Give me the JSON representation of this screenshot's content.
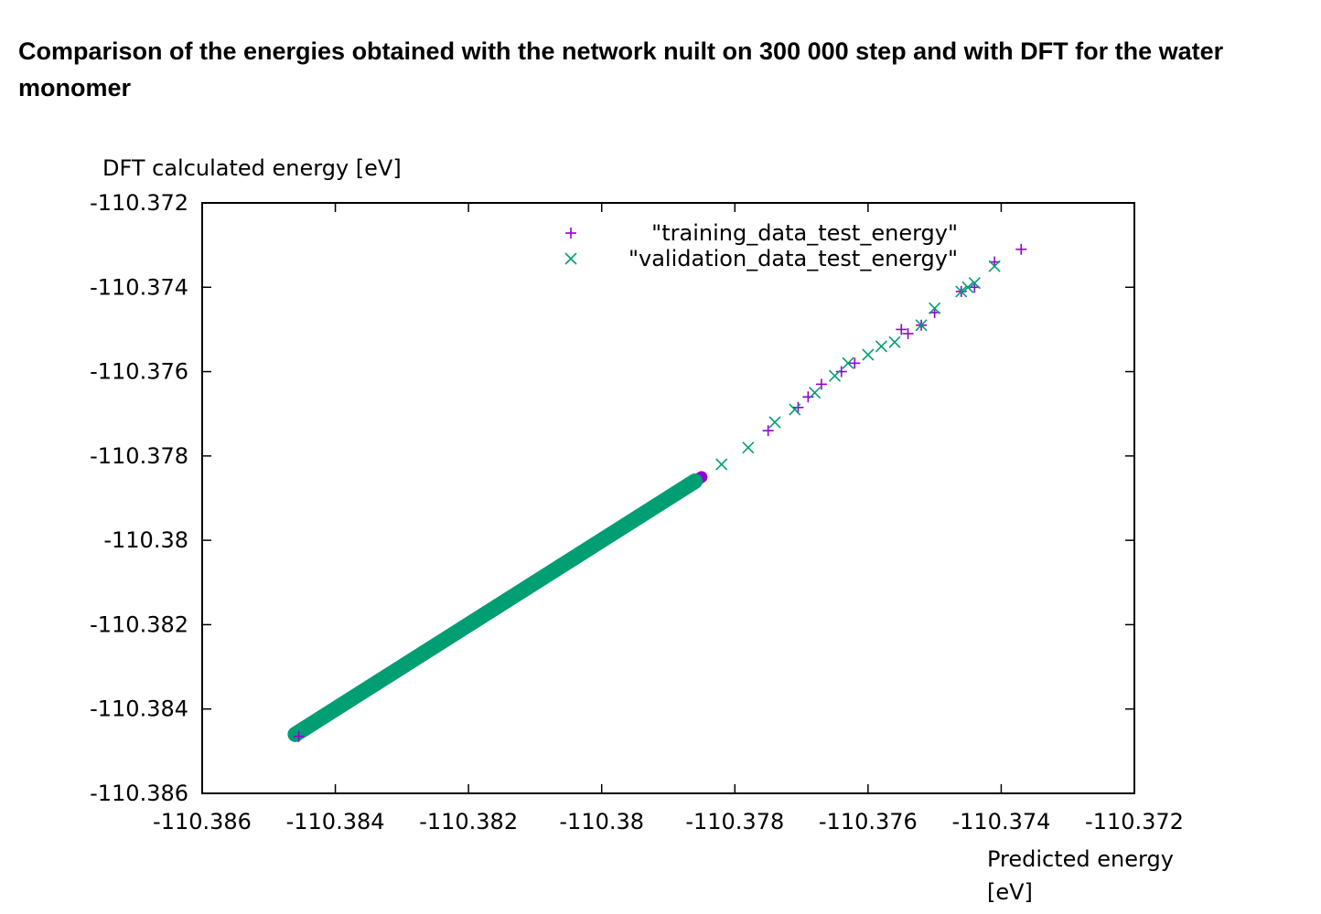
{
  "title": "Comparison of the energies obtained with the network nuilt on 300 000 step and with DFT for the water monomer",
  "chart_data": {
    "type": "scatter",
    "ylabel": "DFT calculated energy [eV]",
    "xlabel_lines": [
      "Predicted energy",
      "[eV]"
    ],
    "xlim": [
      -110.386,
      -110.372
    ],
    "ylim": [
      -110.386,
      -110.372
    ],
    "xticks": [
      "-110.386",
      "-110.384",
      "-110.382",
      "-110.38",
      "-110.378",
      "-110.376",
      "-110.374",
      "-110.372"
    ],
    "yticks": [
      "-110.372",
      "-110.374",
      "-110.376",
      "-110.378",
      "-110.38",
      "-110.382",
      "-110.384",
      "-110.386"
    ],
    "grid": false,
    "legend_position": "top-right",
    "series": [
      {
        "name": "\"training_data_test_energy\"",
        "marker": "plus",
        "color": "#9400d3",
        "trend": {
          "x": [
            -110.3845,
            -110.3785
          ],
          "y": [
            -110.3845,
            -110.3785
          ]
        },
        "points": [
          {
            "x": -110.38455,
            "y": -110.38465
          },
          {
            "x": -110.3775,
            "y": -110.3774
          },
          {
            "x": -110.37705,
            "y": -110.37685
          },
          {
            "x": -110.3769,
            "y": -110.3766
          },
          {
            "x": -110.3767,
            "y": -110.3763
          },
          {
            "x": -110.3764,
            "y": -110.376
          },
          {
            "x": -110.3762,
            "y": -110.3758
          },
          {
            "x": -110.3755,
            "y": -110.375
          },
          {
            "x": -110.3754,
            "y": -110.3751
          },
          {
            "x": -110.3752,
            "y": -110.3749
          },
          {
            "x": -110.375,
            "y": -110.3746
          },
          {
            "x": -110.3746,
            "y": -110.3741
          },
          {
            "x": -110.3744,
            "y": -110.374
          },
          {
            "x": -110.3741,
            "y": -110.3734
          },
          {
            "x": -110.3737,
            "y": -110.3731
          }
        ]
      },
      {
        "name": "\"validation_data_test_energy\"",
        "marker": "cross",
        "color": "#009e73",
        "trend": {
          "x": [
            -110.3846,
            -110.3786
          ],
          "y": [
            -110.3846,
            -110.3786
          ]
        },
        "points": [
          {
            "x": -110.3782,
            "y": -110.3782
          },
          {
            "x": -110.3778,
            "y": -110.3778
          },
          {
            "x": -110.3774,
            "y": -110.3772
          },
          {
            "x": -110.3771,
            "y": -110.3769
          },
          {
            "x": -110.3768,
            "y": -110.3765
          },
          {
            "x": -110.3765,
            "y": -110.3761
          },
          {
            "x": -110.3763,
            "y": -110.3758
          },
          {
            "x": -110.376,
            "y": -110.3756
          },
          {
            "x": -110.3758,
            "y": -110.3754
          },
          {
            "x": -110.3756,
            "y": -110.3753
          },
          {
            "x": -110.3752,
            "y": -110.3749
          },
          {
            "x": -110.375,
            "y": -110.3745
          },
          {
            "x": -110.3746,
            "y": -110.3741
          },
          {
            "x": -110.3745,
            "y": -110.374
          },
          {
            "x": -110.3744,
            "y": -110.3739
          },
          {
            "x": -110.3741,
            "y": -110.3735
          }
        ]
      }
    ]
  }
}
